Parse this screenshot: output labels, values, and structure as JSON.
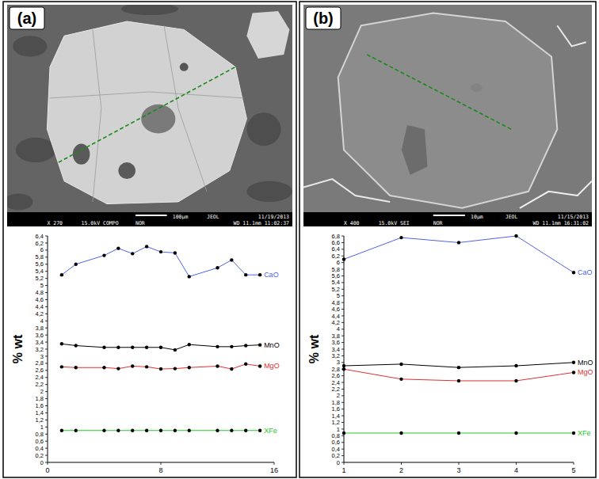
{
  "chart_data": [
    {
      "type": "line",
      "title": "(a)",
      "annotations": [
        "X 270",
        "15.0kV COMPO",
        "NOR",
        "100µm",
        "JEOL",
        "11/19/2013",
        "WD 11.1mm 11:02:37"
      ],
      "y_label": "% wt",
      "marker": "circle",
      "x": [
        1,
        2,
        4,
        5,
        6,
        7,
        8,
        9,
        10,
        12,
        13,
        14,
        15
      ],
      "series": [
        {
          "name": "CaO",
          "color": "#4f63e6",
          "values": [
            5.3,
            5.6,
            5.85,
            6.05,
            5.9,
            6.1,
            5.95,
            5.92,
            5.25,
            5.5,
            5.72,
            5.3,
            5.3
          ]
        },
        {
          "name": "MnO",
          "color": "#000000",
          "values": [
            3.35,
            3.3,
            3.25,
            3.25,
            3.25,
            3.25,
            3.25,
            3.18,
            3.33,
            3.27,
            3.27,
            3.3,
            3.32
          ]
        },
        {
          "name": "MgO",
          "color": "#e03030",
          "values": [
            2.7,
            2.68,
            2.68,
            2.65,
            2.72,
            2.7,
            2.64,
            2.65,
            2.68,
            2.72,
            2.64,
            2.78,
            2.72
          ]
        },
        {
          "name": "XFe",
          "color": "#22cc22",
          "values": [
            0.9,
            0.9,
            0.9,
            0.9,
            0.9,
            0.9,
            0.9,
            0.9,
            0.9,
            0.9,
            0.9,
            0.9,
            0.9
          ]
        }
      ],
      "xlim": [
        0,
        16
      ],
      "xticks": [
        0,
        8,
        16
      ],
      "ylim": [
        0,
        6.4
      ],
      "yticks": [
        0,
        {
          "value": 0.2,
          "label": "0,2"
        },
        {
          "value": 0.4,
          "label": "0,4"
        },
        {
          "value": 0.6,
          "label": "0,6"
        },
        {
          "value": 0.8,
          "label": "0,8"
        },
        1,
        {
          "value": 1.2,
          "label": "1,2"
        },
        {
          "value": 1.4,
          "label": "1,4"
        },
        {
          "value": 1.6,
          "label": "1,6"
        },
        {
          "value": 1.8,
          "label": "1,8"
        },
        2,
        {
          "value": 2.2,
          "label": "2,2"
        },
        {
          "value": 2.4,
          "label": "2,4"
        },
        {
          "value": 2.6,
          "label": "2,6"
        },
        {
          "value": 2.8,
          "label": "2,8"
        },
        3,
        {
          "value": 3.2,
          "label": "3,2"
        },
        {
          "value": 3.4,
          "label": "3,4"
        },
        {
          "value": 3.6,
          "label": "3,6"
        },
        {
          "value": 3.8,
          "label": "3,8"
        },
        4,
        {
          "value": 4.2,
          "label": "4,2"
        },
        {
          "value": 4.4,
          "label": "4,4"
        },
        {
          "value": 4.6,
          "label": "4,6"
        },
        {
          "value": 4.8,
          "label": "4,8"
        },
        5,
        {
          "value": 5.2,
          "label": "5,2"
        },
        {
          "value": 5.4,
          "label": "5,4"
        },
        {
          "value": 5.6,
          "label": "5,6"
        },
        {
          "value": 5.8,
          "label": "5,8"
        },
        6,
        {
          "value": 6.2,
          "label": "6,2"
        },
        {
          "value": 6.4,
          "label": "6,4"
        }
      ]
    },
    {
      "type": "line",
      "title": "(b)",
      "annotations": [
        "X 400",
        "15.0kV SEI",
        "NOR",
        "10µm",
        "JEOL",
        "11/15/2013",
        "WD 11.1mm 16:31:02"
      ],
      "y_label": "% wt",
      "marker": "circle",
      "x": [
        1,
        2,
        3,
        4,
        5
      ],
      "series": [
        {
          "name": "CaO",
          "color": "#4f63e6",
          "values": [
            6.1,
            6.75,
            6.6,
            6.8,
            5.7
          ]
        },
        {
          "name": "MnO",
          "color": "#000000",
          "values": [
            2.9,
            2.95,
            2.85,
            2.9,
            3.0
          ]
        },
        {
          "name": "MgO",
          "color": "#e03030",
          "values": [
            2.8,
            2.5,
            2.45,
            2.45,
            2.7
          ]
        },
        {
          "name": "XFe",
          "color": "#22cc22",
          "values": [
            0.88,
            0.88,
            0.88,
            0.88,
            0.88
          ]
        }
      ],
      "xlim": [
        1,
        5
      ],
      "xticks": [
        1,
        2,
        3,
        4,
        5
      ],
      "ylim": [
        0,
        6.8
      ],
      "yticks": [
        0,
        {
          "value": 0.2,
          "label": "0,2"
        },
        {
          "value": 0.4,
          "label": "0,4"
        },
        {
          "value": 0.6,
          "label": "0,6"
        },
        {
          "value": 0.8,
          "label": "0,8"
        },
        1,
        {
          "value": 1.2,
          "label": "1,2"
        },
        {
          "value": 1.4,
          "label": "1,4"
        },
        {
          "value": 1.6,
          "label": "1,6"
        },
        {
          "value": 1.8,
          "label": "1,8"
        },
        2,
        {
          "value": 2.2,
          "label": "2,2"
        },
        {
          "value": 2.4,
          "label": "2,4"
        },
        {
          "value": 2.6,
          "label": "2,6"
        },
        {
          "value": 2.8,
          "label": "2,8"
        },
        3,
        {
          "value": 3.2,
          "label": "3,2"
        },
        {
          "value": 3.4,
          "label": "3,4"
        },
        {
          "value": 3.6,
          "label": "3,6"
        },
        {
          "value": 3.8,
          "label": "3,8"
        },
        4,
        {
          "value": 4.2,
          "label": "4,2"
        },
        {
          "value": 4.4,
          "label": "4,4"
        },
        {
          "value": 4.6,
          "label": "4,6"
        },
        {
          "value": 4.8,
          "label": "4,8"
        },
        5,
        {
          "value": 5.2,
          "label": "5,2"
        },
        {
          "value": 5.4,
          "label": "5,4"
        },
        {
          "value": 5.6,
          "label": "5,6"
        },
        {
          "value": 5.8,
          "label": "5,8"
        },
        6,
        {
          "value": 6.2,
          "label": "6,2"
        },
        {
          "value": 6.4,
          "label": "6,4"
        },
        {
          "value": 6.6,
          "label": "6,6"
        },
        {
          "value": 6.8,
          "label": "6,8"
        }
      ]
    }
  ]
}
